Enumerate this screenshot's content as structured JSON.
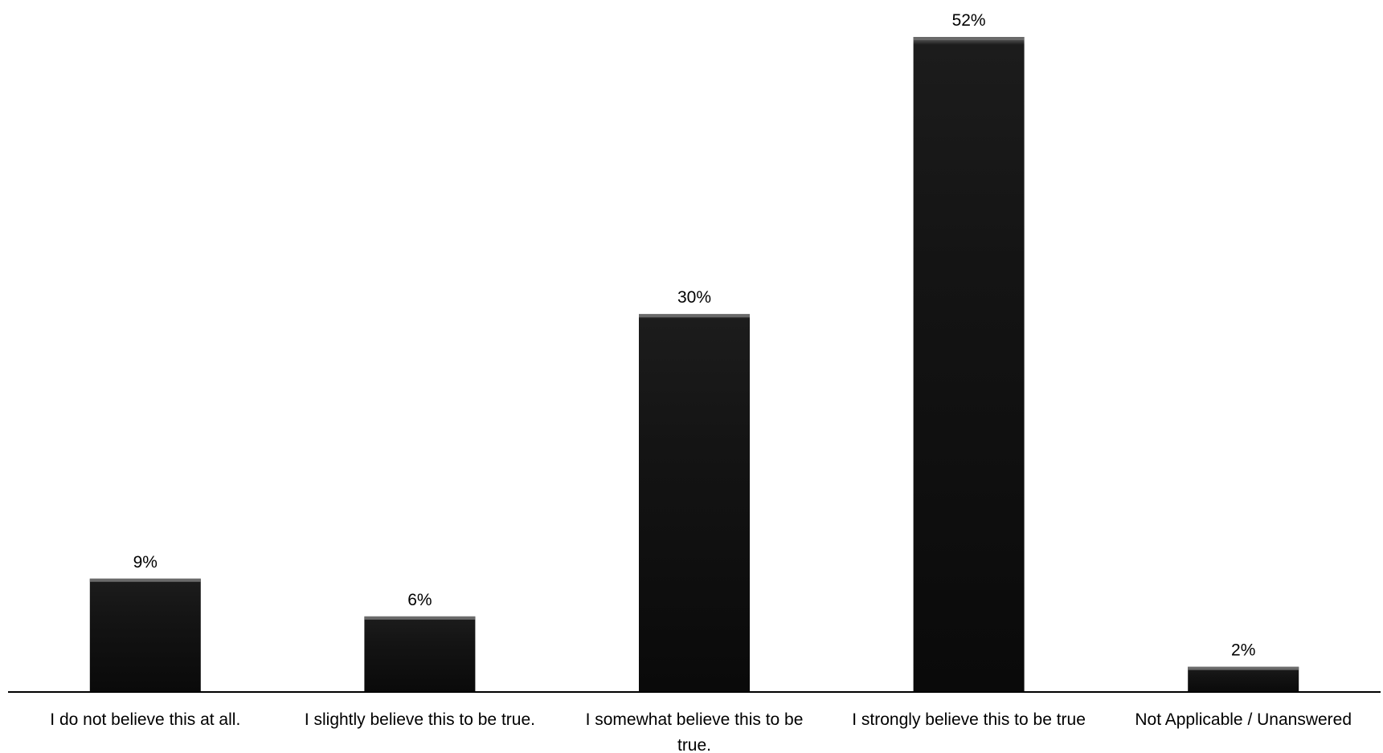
{
  "chart_data": {
    "type": "bar",
    "categories": [
      [
        "I do not believe this at all."
      ],
      [
        "I slightly believe this to be true."
      ],
      [
        "I somewhat believe this to be",
        "true."
      ],
      [
        "I strongly believe this to be true"
      ],
      [
        "Not Applicable / Unanswered"
      ]
    ],
    "values": [
      9,
      6,
      30,
      52,
      2
    ],
    "data_labels": [
      "9%",
      "6%",
      "30%",
      "52%",
      "2%"
    ],
    "unit": "%",
    "ylim": [
      0,
      52
    ],
    "grid": false,
    "legend": "none",
    "colors": {
      "bar": "#0a0a0a",
      "bar_top": "#6a6a6a",
      "axis": "#000000"
    }
  }
}
